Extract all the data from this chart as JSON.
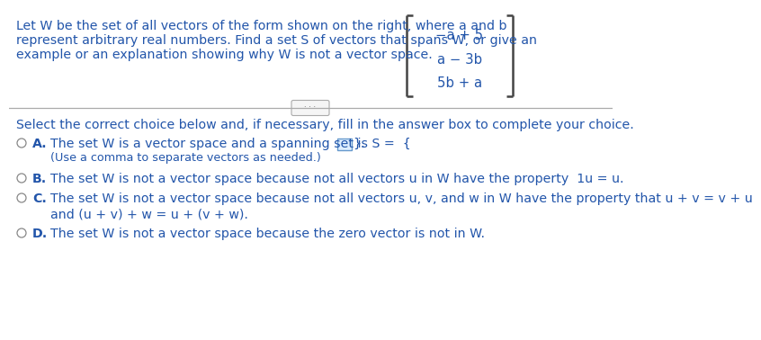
{
  "bg_color": "#ffffff",
  "top_text_lines": [
    "Let W be the set of all vectors of the form shown on the right, where a and b",
    "represent arbitrary real numbers. Find a set S of vectors that spans W, or give an",
    "example or an explanation showing why W is not a vector space."
  ],
  "vector_entries": [
    "−a + 5",
    "a − 3b",
    "5b + a"
  ],
  "select_text": "Select the correct choice below and, if necessary, fill in the answer box to complete your choice.",
  "choice_A_line1": "The set W is a vector space and a spanning set is S =  {",
  "choice_A_line1_end": "}.",
  "choice_A_line2": "(Use a comma to separate vectors as needed.)",
  "choice_B_line1": "The set W is not a vector space because not all vectors u in W have the property  1u = u.",
  "choice_C_line1": "The set W is not a vector space because not all vectors u, v, and w in W have the property that u + v = v + u",
  "choice_C_line2": "and (u + v) + w = u + (v + w).",
  "choice_D_line1": "The set W is not a vector space because the zero vector is not in W.",
  "text_color": "#2255aa",
  "bracket_color": "#444444",
  "divider_color": "#aaaaaa",
  "btn_edge_color": "#aaaaaa",
  "btn_face_color": "#f5f5f5",
  "btn_text_color": "#555555",
  "ans_box_edge": "#6699cc",
  "ans_box_face": "#ddeeff",
  "radio_color": "#888888",
  "font_size_main": 10.2,
  "font_size_small": 9.2,
  "font_size_label": 10.2
}
